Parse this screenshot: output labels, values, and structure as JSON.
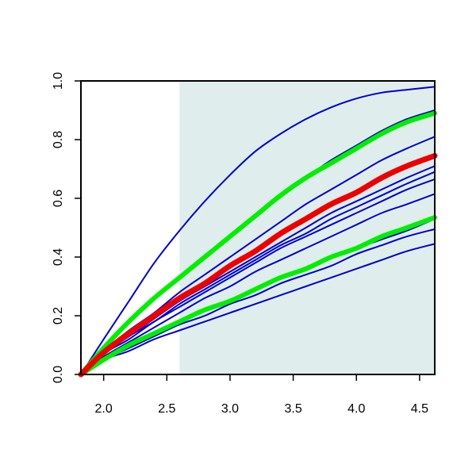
{
  "chart_data": {
    "type": "line",
    "title": "",
    "xlabel": "",
    "ylabel": "",
    "xlim": [
      1.82,
      4.62
    ],
    "ylim": [
      0.0,
      1.0
    ],
    "x_ticks": [
      2.0,
      2.5,
      3.0,
      3.5,
      4.0,
      4.5
    ],
    "x_tick_labels": [
      "2.0",
      "2.5",
      "3.0",
      "3.5",
      "4.0",
      "4.5"
    ],
    "y_ticks": [
      0.0,
      0.2,
      0.4,
      0.6,
      0.8,
      1.0
    ],
    "y_tick_labels": [
      "0.0",
      "0.2",
      "0.4",
      "0.6",
      "0.8",
      "1.0"
    ],
    "grid": false,
    "legend": "none",
    "shaded_region": {
      "x_range": [
        2.6,
        4.62
      ],
      "color": "#e0eded"
    },
    "colors": {
      "blue": "#0000cc",
      "green": "#00ee00",
      "red": "#ee0000"
    },
    "x": [
      1.82,
      2.0,
      2.2,
      2.4,
      2.6,
      2.8,
      3.0,
      3.2,
      3.4,
      3.6,
      3.8,
      4.0,
      4.2,
      4.4,
      4.62
    ],
    "series": [
      {
        "color": "blue",
        "width": 2,
        "values": [
          0.0,
          0.12,
          0.25,
          0.38,
          0.49,
          0.59,
          0.68,
          0.76,
          0.82,
          0.87,
          0.91,
          0.94,
          0.96,
          0.97,
          0.98
        ]
      },
      {
        "color": "blue",
        "width": 2,
        "values": [
          0.0,
          0.09,
          0.18,
          0.26,
          0.33,
          0.4,
          0.47,
          0.54,
          0.61,
          0.67,
          0.73,
          0.78,
          0.83,
          0.87,
          0.9
        ]
      },
      {
        "color": "blue",
        "width": 2,
        "values": [
          0.0,
          0.08,
          0.15,
          0.21,
          0.28,
          0.34,
          0.4,
          0.46,
          0.52,
          0.58,
          0.63,
          0.68,
          0.73,
          0.77,
          0.81
        ]
      },
      {
        "color": "blue",
        "width": 2,
        "values": [
          0.0,
          0.07,
          0.13,
          0.19,
          0.25,
          0.3,
          0.35,
          0.4,
          0.45,
          0.5,
          0.55,
          0.59,
          0.63,
          0.67,
          0.71
        ]
      },
      {
        "color": "blue",
        "width": 2,
        "values": [
          0.0,
          0.07,
          0.13,
          0.18,
          0.24,
          0.29,
          0.34,
          0.39,
          0.44,
          0.48,
          0.53,
          0.57,
          0.61,
          0.65,
          0.69
        ]
      },
      {
        "color": "blue",
        "width": 2,
        "values": [
          0.0,
          0.07,
          0.12,
          0.18,
          0.23,
          0.28,
          0.33,
          0.38,
          0.43,
          0.47,
          0.51,
          0.55,
          0.59,
          0.63,
          0.665
        ]
      },
      {
        "color": "blue",
        "width": 2,
        "values": [
          0.0,
          0.06,
          0.11,
          0.16,
          0.21,
          0.26,
          0.3,
          0.35,
          0.39,
          0.43,
          0.47,
          0.51,
          0.55,
          0.58,
          0.615
        ]
      },
      {
        "color": "blue",
        "width": 2,
        "values": [
          0.0,
          0.05,
          0.1,
          0.14,
          0.18,
          0.22,
          0.25,
          0.29,
          0.33,
          0.36,
          0.4,
          0.43,
          0.46,
          0.49,
          0.53
        ]
      },
      {
        "color": "blue",
        "width": 2,
        "values": [
          0.0,
          0.05,
          0.09,
          0.13,
          0.17,
          0.2,
          0.24,
          0.27,
          0.31,
          0.34,
          0.37,
          0.41,
          0.44,
          0.47,
          0.495
        ]
      },
      {
        "color": "blue",
        "width": 2,
        "values": [
          0.0,
          0.05,
          0.08,
          0.12,
          0.15,
          0.18,
          0.21,
          0.24,
          0.27,
          0.3,
          0.33,
          0.36,
          0.39,
          0.42,
          0.445
        ]
      },
      {
        "color": "green",
        "width": 6,
        "values": [
          0.0,
          0.09,
          0.18,
          0.26,
          0.33,
          0.4,
          0.47,
          0.54,
          0.61,
          0.67,
          0.72,
          0.77,
          0.82,
          0.86,
          0.89
        ]
      },
      {
        "color": "green",
        "width": 6,
        "values": [
          0.0,
          0.05,
          0.1,
          0.14,
          0.18,
          0.22,
          0.25,
          0.29,
          0.33,
          0.36,
          0.4,
          0.43,
          0.47,
          0.5,
          0.535
        ]
      },
      {
        "color": "red",
        "width": 7,
        "values": [
          0.0,
          0.075,
          0.14,
          0.2,
          0.26,
          0.31,
          0.37,
          0.42,
          0.48,
          0.53,
          0.58,
          0.62,
          0.67,
          0.71,
          0.745
        ]
      }
    ]
  }
}
